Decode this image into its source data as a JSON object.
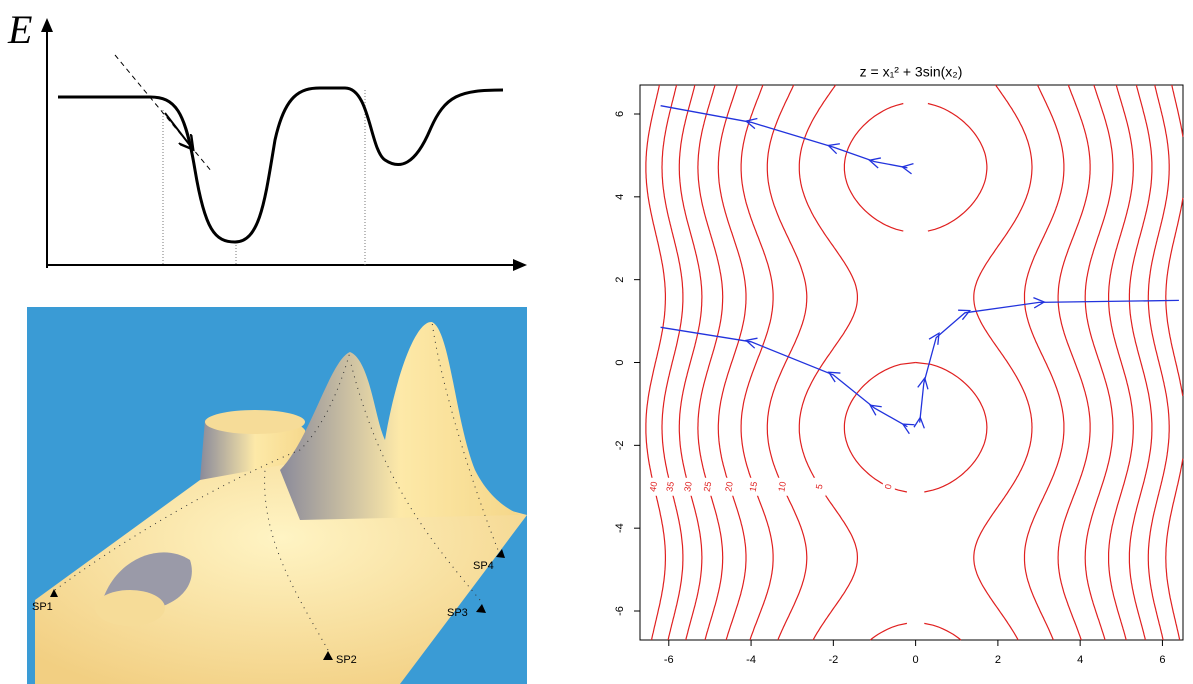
{
  "energy_curve": {
    "axis_label": "E"
  },
  "landscape": {
    "points": [
      "SP1",
      "SP2",
      "SP3",
      "SP4"
    ]
  },
  "chart_data": {
    "type": "contour",
    "title": "z = x₁² + 3sin(x₂)",
    "xlim": [
      -6.7,
      6.5
    ],
    "ylim": [
      -6.7,
      6.7
    ],
    "xticks": [
      -6,
      -4,
      -2,
      0,
      2,
      4,
      6
    ],
    "yticks": [
      -6,
      -4,
      -2,
      0,
      2,
      4,
      6
    ],
    "levels": [
      0,
      5,
      10,
      15,
      20,
      25,
      30,
      35,
      40
    ],
    "contour_color": "#e02020",
    "series": [
      {
        "color": "#2233dd",
        "x": [
          -6.2,
          -4,
          -2,
          -1,
          -0.2
        ],
        "y": [
          6.2,
          5.8,
          5.2,
          4.85,
          4.7
        ]
      },
      {
        "color": "#2233dd",
        "x": [
          -6.2,
          -4,
          -2,
          -1,
          -0.2
        ],
        "y": [
          0.85,
          0.5,
          -0.3,
          -1.1,
          -1.55
        ]
      },
      {
        "color": "#2233dd",
        "x": [
          6.4,
          3,
          1.2,
          0.5,
          0.2,
          0.1
        ],
        "y": [
          1.5,
          1.45,
          1.2,
          0.6,
          -0.5,
          -1.45
        ]
      }
    ]
  }
}
